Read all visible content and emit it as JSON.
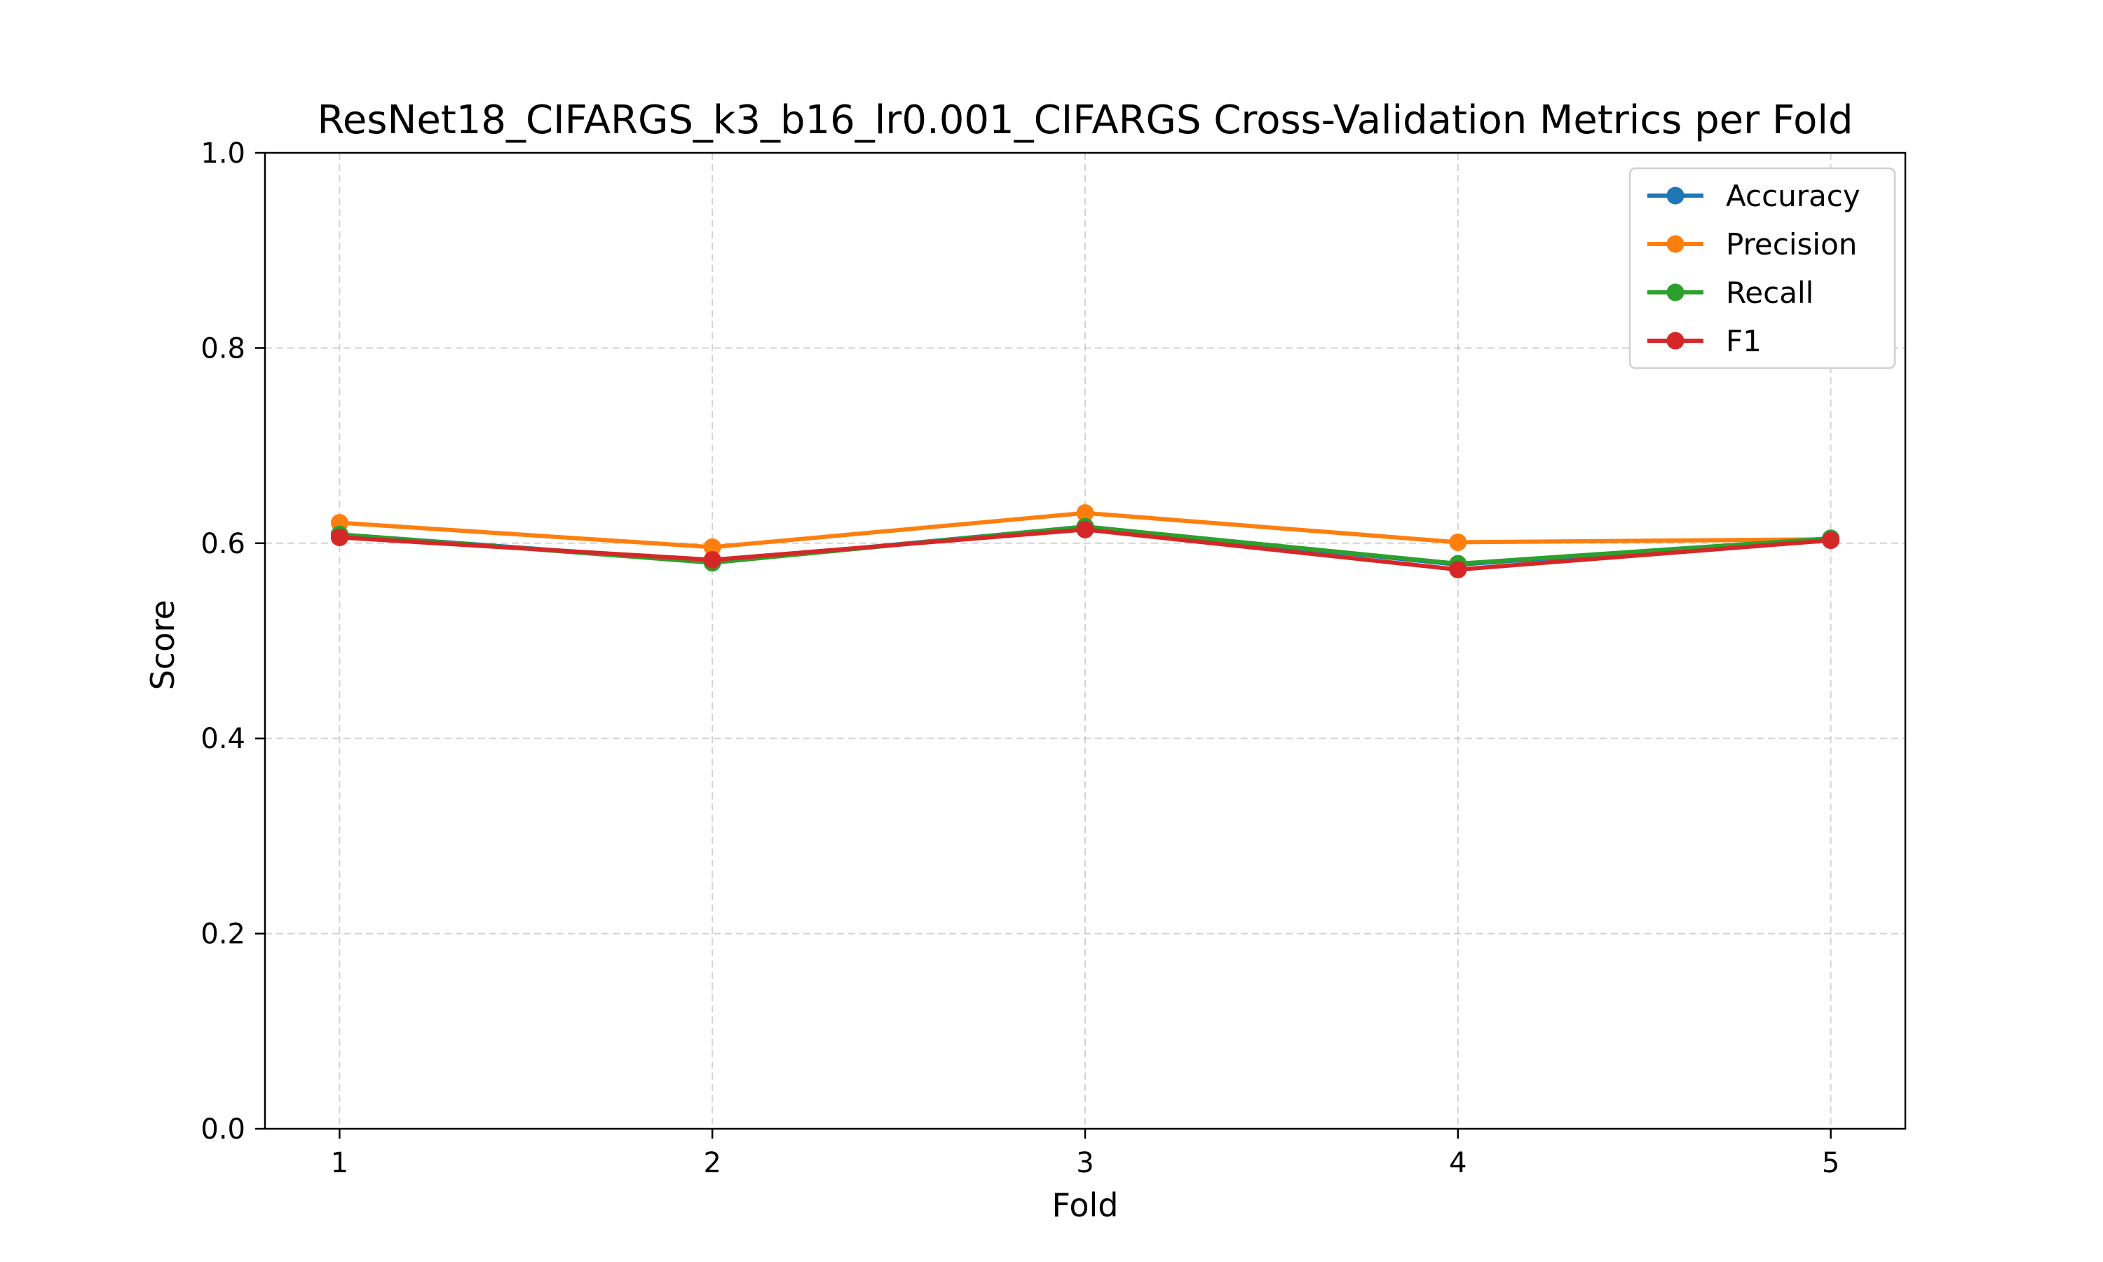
{
  "chart_data": {
    "type": "line",
    "title": "ResNet18_CIFARGS_k3_b16_lr0.001_CIFARGS Cross-Validation Metrics per Fold",
    "xlabel": "Fold",
    "ylabel": "Score",
    "x": [
      1,
      2,
      3,
      4,
      5
    ],
    "xticks": [
      "1",
      "2",
      "3",
      "4",
      "5"
    ],
    "yticks": [
      "0.0",
      "0.2",
      "0.4",
      "0.6",
      "0.8",
      "1.0"
    ],
    "xlim": [
      0.8,
      5.2
    ],
    "ylim": [
      0.0,
      1.0
    ],
    "grid": true,
    "legend_position": "top-right",
    "series": [
      {
        "name": "Accuracy",
        "color": "#1f77b4",
        "values": [
          0.609,
          0.581,
          0.617,
          0.578,
          0.605
        ]
      },
      {
        "name": "Precision",
        "color": "#ff7f0e",
        "values": [
          0.621,
          0.596,
          0.631,
          0.601,
          0.604
        ]
      },
      {
        "name": "Recall",
        "color": "#2ca02c",
        "values": [
          0.609,
          0.58,
          0.617,
          0.579,
          0.605
        ]
      },
      {
        "name": "F1",
        "color": "#d62728",
        "values": [
          0.606,
          0.583,
          0.614,
          0.573,
          0.603
        ]
      }
    ]
  }
}
